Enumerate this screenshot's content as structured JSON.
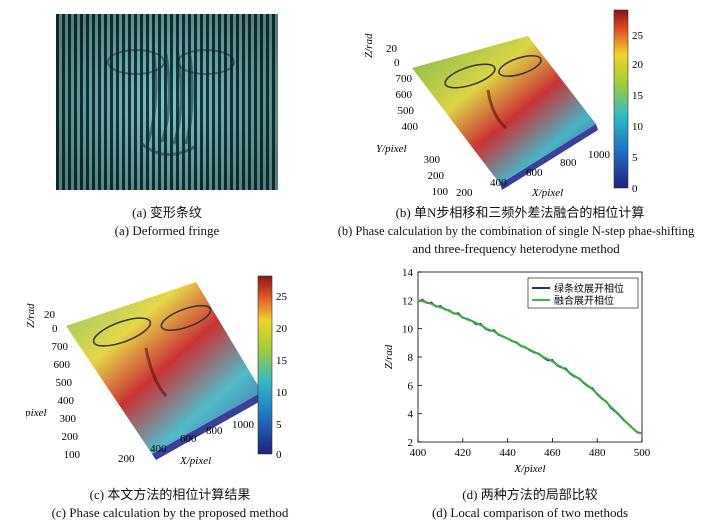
{
  "panel_a": {
    "caption_cn": "(a) 变形条纹",
    "caption_en": "(a) Deformed fringe"
  },
  "panel_b": {
    "caption_cn": "(b) 单N步相移和三频外差法融合的相位计算",
    "caption_en_1": "(b) Phase calculation by the combination of single N-step phae-shifting",
    "caption_en_2": "and three-frequency heterodyne method",
    "z_label": "Z/rad",
    "y_label": "Y/pixel",
    "x_label": "X/pixel",
    "z_ticks": [
      "20",
      "0"
    ],
    "y_ticks": [
      "700",
      "600",
      "500",
      "400",
      "300",
      "200",
      "100"
    ],
    "x_ticks": [
      "200",
      "400",
      "600",
      "800",
      "1000"
    ],
    "colorbar_ticks": [
      "25",
      "20",
      "15",
      "10",
      "5",
      "0"
    ]
  },
  "panel_c": {
    "caption_cn": "(c) 本文方法的相位计算结果",
    "caption_en": "(c) Phase calculation by the proposed method",
    "z_label": "Z/rad",
    "y_label": "Y/pixel",
    "x_label": "X/pixel",
    "z_ticks": [
      "20",
      "0"
    ],
    "y_ticks": [
      "700",
      "600",
      "500",
      "400",
      "300",
      "200",
      "100"
    ],
    "x_ticks": [
      "200",
      "400",
      "600",
      "800",
      "1000"
    ],
    "colorbar_ticks": [
      "25",
      "20",
      "15",
      "10",
      "5",
      "0"
    ]
  },
  "panel_d": {
    "caption_cn": "(d) 两种方法的局部比较",
    "caption_en": "(d) Local comparison of  two methods"
  },
  "chart_data": {
    "type": "line",
    "title": "",
    "xlabel": "X/pixel",
    "ylabel": "Z/rad",
    "xlim": [
      400,
      500
    ],
    "ylim": [
      2,
      14
    ],
    "xticks": [
      400,
      420,
      440,
      460,
      480,
      500
    ],
    "yticks": [
      2,
      4,
      6,
      8,
      10,
      12,
      14
    ],
    "legend_position": "top-right",
    "grid": false,
    "series": [
      {
        "name": "绿条纹展开相位",
        "color": "#1f2f8f",
        "x": [
          400,
          402,
          404,
          406,
          408,
          410,
          412,
          414,
          416,
          418,
          420,
          422,
          424,
          426,
          428,
          430,
          432,
          434,
          436,
          438,
          440,
          442,
          444,
          446,
          448,
          450,
          452,
          454,
          456,
          458,
          460,
          462,
          464,
          466,
          468,
          470,
          472,
          474,
          476,
          478,
          480,
          482,
          484,
          486,
          488,
          490,
          492,
          494,
          496,
          498,
          500
        ],
        "y": [
          11.9,
          12.05,
          11.8,
          11.85,
          11.55,
          11.6,
          11.35,
          11.3,
          11.05,
          11.1,
          10.75,
          10.7,
          10.55,
          10.3,
          10.35,
          10.0,
          9.85,
          9.9,
          9.55,
          9.45,
          9.3,
          9.1,
          9.05,
          8.75,
          8.7,
          8.45,
          8.3,
          8.25,
          7.95,
          7.75,
          7.8,
          7.4,
          7.25,
          7.2,
          6.8,
          6.6,
          6.5,
          6.15,
          5.9,
          5.8,
          5.35,
          5.05,
          4.85,
          4.4,
          4.15,
          3.85,
          3.5,
          3.25,
          2.95,
          2.65,
          2.65
        ]
      },
      {
        "name": "融合展开相位",
        "color": "#3cb43c",
        "x": [
          400,
          402,
          404,
          406,
          408,
          410,
          412,
          414,
          416,
          418,
          420,
          422,
          424,
          426,
          428,
          430,
          432,
          434,
          436,
          438,
          440,
          442,
          444,
          446,
          448,
          450,
          452,
          454,
          456,
          458,
          460,
          462,
          464,
          466,
          468,
          470,
          472,
          474,
          476,
          478,
          480,
          482,
          484,
          486,
          488,
          490,
          492,
          494,
          496,
          498,
          500
        ],
        "y": [
          11.95,
          11.95,
          11.85,
          11.75,
          11.6,
          11.5,
          11.4,
          11.25,
          11.1,
          11.0,
          10.8,
          10.65,
          10.55,
          10.4,
          10.25,
          10.05,
          9.9,
          9.8,
          9.6,
          9.45,
          9.3,
          9.15,
          9.0,
          8.8,
          8.65,
          8.5,
          8.35,
          8.2,
          8.0,
          7.85,
          7.7,
          7.45,
          7.3,
          7.1,
          6.85,
          6.65,
          6.45,
          6.2,
          5.95,
          5.7,
          5.4,
          5.1,
          4.85,
          4.5,
          4.2,
          3.9,
          3.55,
          3.25,
          2.95,
          2.7,
          2.6
        ]
      }
    ]
  }
}
